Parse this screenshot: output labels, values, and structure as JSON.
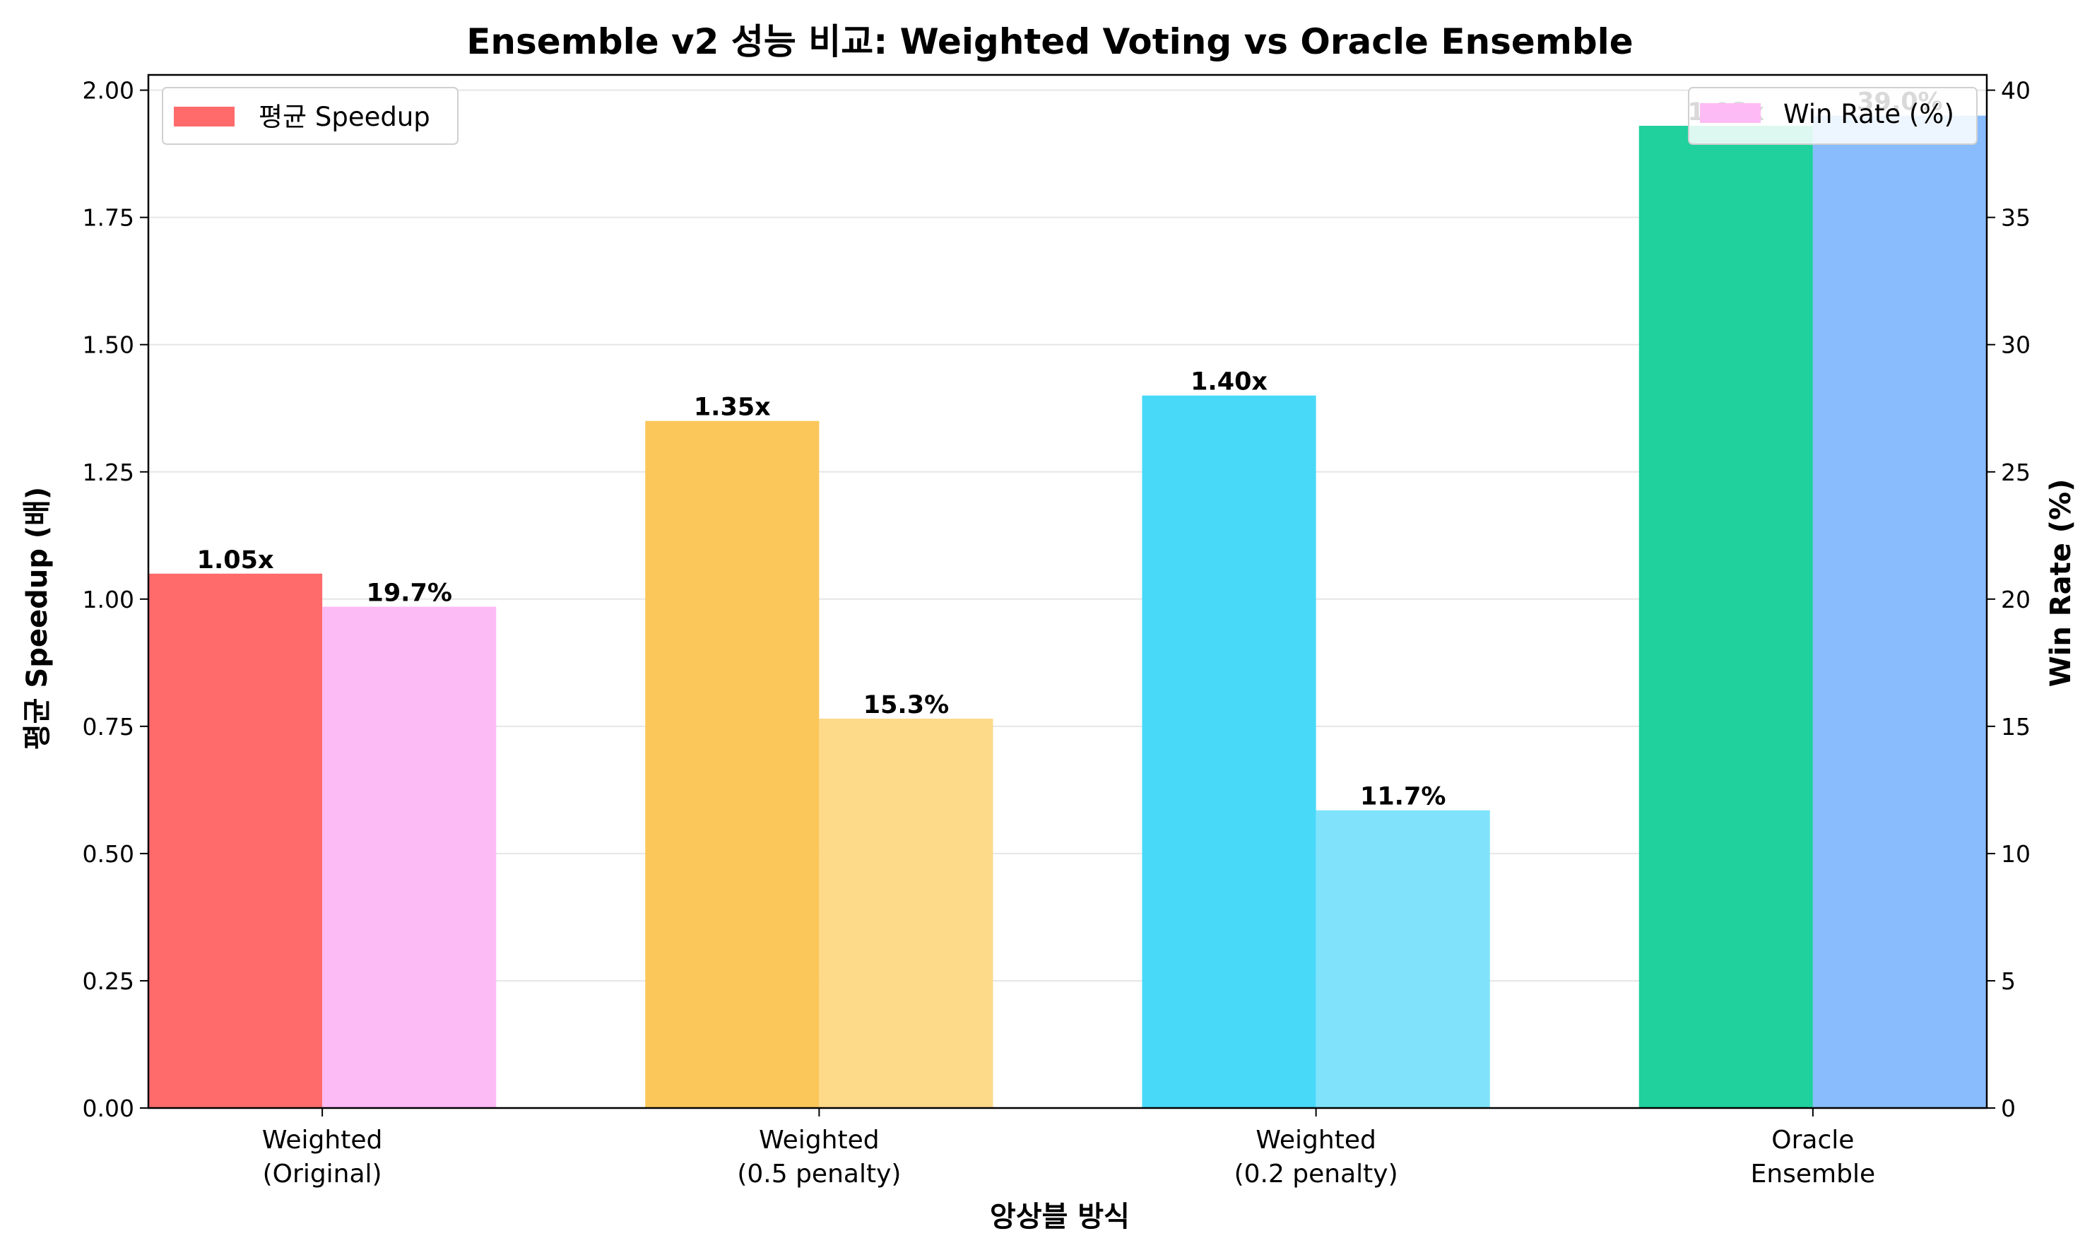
{
  "chart_data": {
    "type": "bar",
    "title": "Ensemble v2 성능 비교: Weighted Voting vs Oracle Ensemble",
    "xlabel": "앙상블 방식",
    "ylabel": "평균 Speedup (배)",
    "y2label": "Win Rate (%)",
    "categories": [
      [
        "Weighted",
        "(Original)"
      ],
      [
        "Weighted",
        "(0.5 penalty)"
      ],
      [
        "Weighted",
        "(0.2 penalty)"
      ],
      [
        "Oracle",
        "Ensemble"
      ]
    ],
    "series": [
      {
        "name": "평균 Speedup",
        "axis": "left",
        "values": [
          1.05,
          1.35,
          1.4,
          1.93
        ],
        "labels": [
          "1.05x",
          "1.35x",
          "1.40x",
          "1.93x"
        ],
        "colors": [
          "#ff6b6b",
          "#fcc75a",
          "#48d9f9",
          "#20d09d"
        ]
      },
      {
        "name": "Win Rate (%)",
        "axis": "right",
        "values": [
          19.7,
          15.3,
          11.7,
          39.0
        ],
        "labels": [
          "19.7%",
          "15.3%",
          "11.7%",
          "39.0%"
        ],
        "colors": [
          "#fdbbf6",
          "#fdd98a",
          "#80e3fb",
          "#88bcfc"
        ]
      }
    ],
    "ylim": [
      0,
      2.03
    ],
    "y2lim": [
      0,
      40.6
    ],
    "yticks": [
      "0.00",
      "0.25",
      "0.50",
      "0.75",
      "1.00",
      "1.25",
      "1.50",
      "1.75",
      "2.00"
    ],
    "y2ticks": [
      "0",
      "5",
      "10",
      "15",
      "20",
      "25",
      "30",
      "35",
      "40"
    ],
    "grid": "horizontal",
    "legend": [
      {
        "label": "평균 Speedup",
        "color": "#ff6b6b",
        "position": "upper-left"
      },
      {
        "label": "Win Rate (%)",
        "color": "#fdbbf6",
        "position": "upper-right"
      }
    ]
  }
}
